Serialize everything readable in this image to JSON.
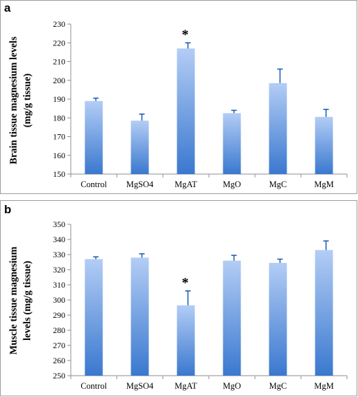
{
  "chart_data": [
    {
      "type": "bar",
      "panel_label": "a",
      "ylabel": "Brain tissue magnesium levels (mg/g tissue)",
      "ylabel_lines": [
        "Brain tissue magnesium levels",
        "(mg/g tissue)"
      ],
      "categories": [
        "Control",
        "MgSO4",
        "MgAT",
        "MgO",
        "MgC",
        "MgM"
      ],
      "values": [
        189,
        178.5,
        217,
        182.5,
        198.5,
        180.5
      ],
      "errors": [
        1.5,
        3.5,
        3,
        1.5,
        7.5,
        4
      ],
      "significance": [
        "",
        "",
        "*",
        "",
        "",
        ""
      ],
      "ylim": [
        150,
        230
      ],
      "yticks": [
        150,
        160,
        170,
        180,
        190,
        200,
        210,
        220,
        230
      ],
      "bar_color_top": "#b3cdf5",
      "bar_color_bottom": "#3a78cf"
    },
    {
      "type": "bar",
      "panel_label": "b",
      "ylabel": "Muscle tissue magnesium levels (mg/g tissue)",
      "ylabel_lines": [
        "Muscle tissue magnesium",
        "levels (mg/g tissue)"
      ],
      "categories": [
        "Control",
        "MgSO4",
        "MgAT",
        "MgO",
        "MgC",
        "MgM"
      ],
      "values": [
        327,
        328,
        296.5,
        326,
        324.5,
        333
      ],
      "errors": [
        1.5,
        2.5,
        9.5,
        3.5,
        2.5,
        6
      ],
      "significance": [
        "",
        "",
        "*",
        "",
        "",
        ""
      ],
      "ylim": [
        250,
        350
      ],
      "yticks": [
        250,
        260,
        270,
        280,
        290,
        300,
        310,
        320,
        330,
        340,
        350
      ],
      "bar_color_top": "#b3cdf5",
      "bar_color_bottom": "#3a78cf"
    }
  ]
}
